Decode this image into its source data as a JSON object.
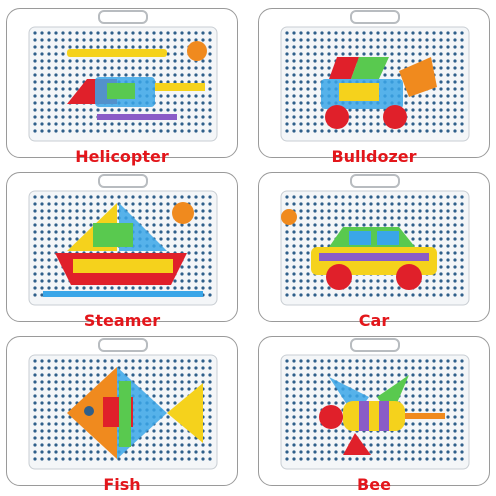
{
  "panels": [
    {
      "caption": "Helicopter"
    },
    {
      "caption": "Bulldozer"
    },
    {
      "caption": "Steamer"
    },
    {
      "caption": "Car"
    },
    {
      "caption": "Fish"
    },
    {
      "caption": "Bee"
    }
  ],
  "colors": {
    "caption_red": "#e3161b",
    "peg_blue": "#2f5f8a",
    "board_white": "#f4f6f8",
    "piece_red": "#e0202a",
    "piece_yellow": "#f5d21c",
    "piece_green": "#59c94f",
    "piece_blue": "#3aa6e8",
    "piece_purple": "#8a5cc7",
    "piece_orange": "#f08a1e"
  }
}
